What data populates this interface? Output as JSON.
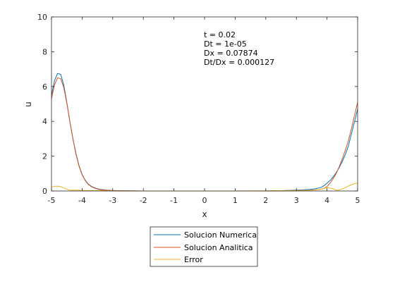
{
  "chart_data": {
    "type": "line",
    "title": "",
    "xlabel": "x",
    "ylabel": "u",
    "xlim": [
      -5,
      5
    ],
    "ylim": [
      0,
      10
    ],
    "xticks": [
      -5,
      -4,
      -3,
      -2,
      -1,
      0,
      1,
      2,
      3,
      4,
      5
    ],
    "yticks": [
      0,
      2,
      4,
      6,
      8,
      10
    ],
    "grid": false,
    "legend_position": "bottom-outside",
    "annotations": [
      "t = 0.02",
      "Dt = 1e-05",
      "Dx = 0.07874",
      "Dt/Dx = 0.000127"
    ],
    "series": [
      {
        "name": "Solucion Numerica",
        "color": "#0072BD",
        "x": [
          -5,
          -4.9,
          -4.8,
          -4.7,
          -4.6,
          -4.5,
          -4.4,
          -4.3,
          -4.2,
          -4.1,
          -4.0,
          -3.9,
          -3.8,
          -3.7,
          -3.6,
          -3.5,
          -3.4,
          -3.2,
          -3.0,
          -2.5,
          -2.0,
          -1.0,
          0,
          1.0,
          2.0,
          2.5,
          3.0,
          3.4,
          3.6,
          3.8,
          3.9,
          4.0,
          4.1,
          4.2,
          4.3,
          4.4,
          4.5,
          4.6,
          4.7,
          4.8,
          4.9,
          5.0
        ],
        "values": [
          5.5,
          6.35,
          6.75,
          6.7,
          6.1,
          5.1,
          4.0,
          3.0,
          2.15,
          1.45,
          0.95,
          0.62,
          0.4,
          0.27,
          0.19,
          0.13,
          0.09,
          0.05,
          0.03,
          0.01,
          0.0,
          0.0,
          0.0,
          0.0,
          0.0,
          0.02,
          0.05,
          0.08,
          0.12,
          0.2,
          0.3,
          0.45,
          0.6,
          0.8,
          1.05,
          1.35,
          1.7,
          2.1,
          2.6,
          3.3,
          4.0,
          4.7
        ]
      },
      {
        "name": "Solucion Analitica",
        "color": "#D95319",
        "x": [
          -5,
          -4.9,
          -4.8,
          -4.7,
          -4.6,
          -4.5,
          -4.4,
          -4.3,
          -4.2,
          -4.1,
          -4.0,
          -3.9,
          -3.8,
          -3.7,
          -3.6,
          -3.5,
          -3.4,
          -3.2,
          -3.0,
          -2.5,
          -2.0,
          -1.0,
          0,
          1.0,
          2.0,
          2.5,
          3.0,
          3.4,
          3.6,
          3.8,
          3.9,
          4.0,
          4.1,
          4.2,
          4.3,
          4.4,
          4.5,
          4.6,
          4.7,
          4.8,
          4.9,
          5.0
        ],
        "values": [
          5.3,
          6.1,
          6.5,
          6.45,
          5.95,
          5.05,
          4.0,
          3.0,
          2.1,
          1.42,
          0.93,
          0.6,
          0.38,
          0.25,
          0.17,
          0.11,
          0.07,
          0.04,
          0.02,
          0.01,
          0.0,
          0.0,
          0.0,
          0.0,
          0.0,
          0.01,
          0.02,
          0.04,
          0.06,
          0.1,
          0.15,
          0.25,
          0.45,
          0.7,
          1.0,
          1.4,
          1.85,
          2.35,
          2.9,
          3.6,
          4.35,
          5.1
        ]
      },
      {
        "name": "Error",
        "color": "#EDB120",
        "x": [
          -5,
          -4.9,
          -4.8,
          -4.7,
          -4.6,
          -4.5,
          -4.4,
          -4.3,
          -4.2,
          -4.1,
          -4.0,
          -3.9,
          -3.8,
          -3.6,
          -3.4,
          -3.2,
          -3.0,
          -2.5,
          -2.0,
          -1.0,
          0,
          1.0,
          2.0,
          2.5,
          3.0,
          3.4,
          3.6,
          3.8,
          3.9,
          4.0,
          4.1,
          4.2,
          4.3,
          4.4,
          4.5,
          4.6,
          4.7,
          4.8,
          4.9,
          5.0
        ],
        "values": [
          0.22,
          0.27,
          0.28,
          0.25,
          0.18,
          0.1,
          0.05,
          0.04,
          0.05,
          0.04,
          0.03,
          0.02,
          0.02,
          0.02,
          0.02,
          0.01,
          0.01,
          0.0,
          0.0,
          0.0,
          0.0,
          0.0,
          0.01,
          0.02,
          0.03,
          0.04,
          0.06,
          0.1,
          0.15,
          0.2,
          0.16,
          0.12,
          0.05,
          0.05,
          0.12,
          0.2,
          0.28,
          0.36,
          0.42,
          0.45
        ]
      }
    ]
  }
}
